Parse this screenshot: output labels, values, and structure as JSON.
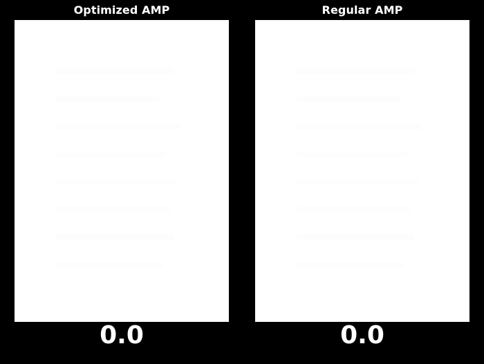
{
  "panels": {
    "left": {
      "title": "Optimized AMP",
      "timer": "0.0"
    },
    "right": {
      "title": "Regular AMP",
      "timer": "0.0"
    }
  },
  "colors": {
    "background": "#000000",
    "frame": "#ffffff",
    "text": "#ffffff"
  }
}
